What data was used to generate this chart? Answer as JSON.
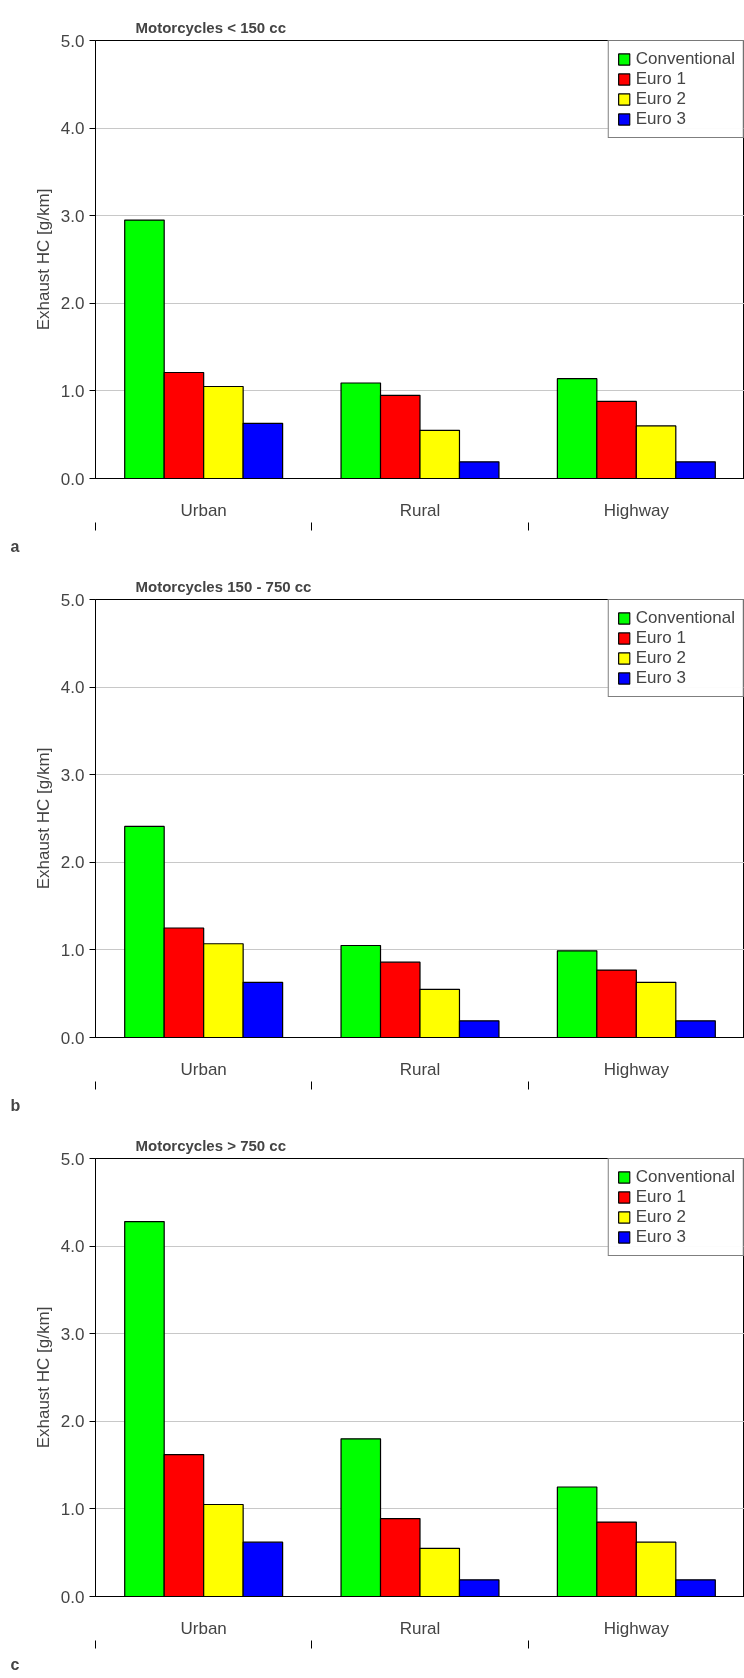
{
  "chart_data": [
    {
      "type": "bar",
      "title": "Motorcycles < 150 cc",
      "ylabel": "Exhaust HC [g/km]",
      "categories": [
        "Urban",
        "Rural",
        "Highway"
      ],
      "series": [
        {
          "name": "Conventional",
          "color": "#00ff00",
          "values": [
            2.95,
            1.09,
            1.14
          ]
        },
        {
          "name": "Euro 1",
          "color": "#ff0000",
          "values": [
            1.21,
            0.95,
            0.88
          ]
        },
        {
          "name": "Euro 2",
          "color": "#ffff00",
          "values": [
            1.05,
            0.55,
            0.6
          ]
        },
        {
          "name": "Euro 3",
          "color": "#0000ff",
          "values": [
            0.63,
            0.19,
            0.19
          ]
        }
      ],
      "ylim": [
        0,
        5
      ],
      "yticks": [
        {
          "value": 0,
          "label": "0.0"
        },
        {
          "value": 1,
          "label": "1.0"
        },
        {
          "value": 2,
          "label": "2.0"
        },
        {
          "value": 3,
          "label": "3.0"
        },
        {
          "value": 4,
          "label": "4.0"
        },
        {
          "value": 5,
          "label": "5.0"
        }
      ],
      "grid": "y",
      "legend": "top right",
      "annotations": [
        "a"
      ]
    },
    {
      "type": "bar",
      "title": "Motorcycles 150 - 750 cc",
      "ylabel": "Exhaust HC [g/km]",
      "categories": [
        "Urban",
        "Rural",
        "Highway"
      ],
      "series": [
        {
          "name": "Conventional",
          "color": "#00ff00",
          "values": [
            2.41,
            1.05,
            0.99
          ]
        },
        {
          "name": "Euro 1",
          "color": "#ff0000",
          "values": [
            1.25,
            0.86,
            0.77
          ]
        },
        {
          "name": "Euro 2",
          "color": "#ffff00",
          "values": [
            1.07,
            0.55,
            0.63
          ]
        },
        {
          "name": "Euro 3",
          "color": "#0000ff",
          "values": [
            0.63,
            0.19,
            0.19
          ]
        }
      ],
      "ylim": [
        0,
        5
      ],
      "yticks": [
        {
          "value": 0,
          "label": "0.0"
        },
        {
          "value": 1,
          "label": "1.0"
        },
        {
          "value": 2,
          "label": "2.0"
        },
        {
          "value": 3,
          "label": "3.0"
        },
        {
          "value": 4,
          "label": "4.0"
        },
        {
          "value": 5,
          "label": "5.0"
        }
      ],
      "grid": "y",
      "legend": "top right",
      "annotations": [
        "b"
      ]
    },
    {
      "type": "bar",
      "title": "Motorcycles > 750 cc",
      "ylabel": "Exhaust HC [g/km]",
      "categories": [
        "Urban",
        "Rural",
        "Highway"
      ],
      "series": [
        {
          "name": "Conventional",
          "color": "#00ff00",
          "values": [
            4.28,
            1.8,
            1.25
          ]
        },
        {
          "name": "Euro 1",
          "color": "#ff0000",
          "values": [
            1.62,
            0.89,
            0.85
          ]
        },
        {
          "name": "Euro 2",
          "color": "#ffff00",
          "values": [
            1.05,
            0.55,
            0.62
          ]
        },
        {
          "name": "Euro 3",
          "color": "#0000ff",
          "values": [
            0.62,
            0.19,
            0.19
          ]
        }
      ],
      "ylim": [
        0,
        5
      ],
      "yticks": [
        {
          "value": 0,
          "label": "0.0"
        },
        {
          "value": 1,
          "label": "1.0"
        },
        {
          "value": 2,
          "label": "2.0"
        },
        {
          "value": 3,
          "label": "3.0"
        },
        {
          "value": 4,
          "label": "4.0"
        },
        {
          "value": 5,
          "label": "5.0"
        }
      ],
      "grid": "y",
      "legend": "top right",
      "annotations": [
        "c"
      ]
    }
  ]
}
